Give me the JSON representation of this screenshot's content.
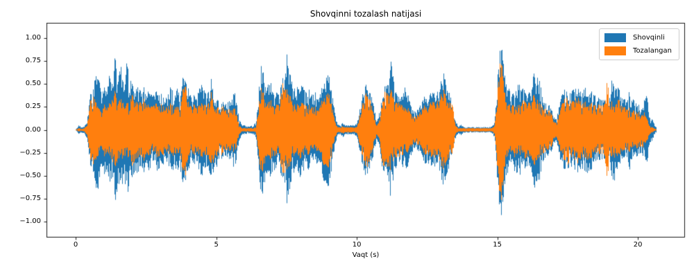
{
  "title": "Shovqinni tozalash natijasi",
  "x_axis": {
    "label": "Vaqt (s)",
    "ticks": [
      "0",
      "5",
      "10",
      "15",
      "20"
    ],
    "tick_values": [
      0,
      5,
      10,
      15,
      20
    ]
  },
  "y_axis": {
    "ticks": [
      "1.00",
      "0.75",
      "0.50",
      "0.25",
      "0.00",
      "−0.25",
      "−0.50",
      "−0.75",
      "−1.00"
    ],
    "tick_values": [
      1.0,
      0.75,
      0.5,
      0.25,
      0.0,
      -0.25,
      -0.5,
      -0.75,
      -1.0
    ]
  },
  "legend": {
    "items": [
      {
        "label": "Shovqinli",
        "color": "#1f77b4"
      },
      {
        "label": "Tozalangan",
        "color": "#ff7f0e"
      }
    ]
  },
  "colors": {
    "noisy": "#1f77b4",
    "clean": "#ff7f0e",
    "axis": "#000000",
    "background": "#ffffff",
    "legend_border": "#cccccc"
  },
  "chart_data": {
    "type": "line",
    "subtype": "audio-waveform",
    "title": "Shovqinni tozalash natijasi",
    "xlabel": "Vaqt (s)",
    "ylabel": "",
    "xlim": [
      -1.04,
      21.65
    ],
    "ylim": [
      -1.17,
      1.17
    ],
    "grid": false,
    "legend_position": "upper right",
    "duration_s": 20.64,
    "sample_step_s": 0.1,
    "series": [
      {
        "name": "Shovqinli",
        "color": "#1f77b4",
        "envelope": [
          0.01,
          0.05,
          0.03,
          0.04,
          0.1,
          0.38,
          0.45,
          0.67,
          0.66,
          0.38,
          0.5,
          0.45,
          0.62,
          0.5,
          0.87,
          0.55,
          0.72,
          0.5,
          0.8,
          0.55,
          0.52,
          0.45,
          0.55,
          0.42,
          0.48,
          0.4,
          0.45,
          0.38,
          0.42,
          0.45,
          0.4,
          0.38,
          0.35,
          0.42,
          0.5,
          0.4,
          0.45,
          0.42,
          0.58,
          0.55,
          0.45,
          0.35,
          0.38,
          0.35,
          0.48,
          0.5,
          0.42,
          0.4,
          0.57,
          0.45,
          0.42,
          0.3,
          0.32,
          0.28,
          0.3,
          0.35,
          0.42,
          0.38,
          0.12,
          0.06,
          0.05,
          0.04,
          0.04,
          0.05,
          0.08,
          0.45,
          0.76,
          0.62,
          0.5,
          0.55,
          0.48,
          0.45,
          0.4,
          0.5,
          0.62,
          0.84,
          0.65,
          0.5,
          0.45,
          0.5,
          0.52,
          0.45,
          0.4,
          0.45,
          0.38,
          0.42,
          0.35,
          0.4,
          0.55,
          0.67,
          0.6,
          0.45,
          0.2,
          0.06,
          0.05,
          0.08,
          0.05,
          0.05,
          0.05,
          0.06,
          0.08,
          0.25,
          0.4,
          0.5,
          0.48,
          0.4,
          0.25,
          0.1,
          0.2,
          0.45,
          0.48,
          0.5,
          0.77,
          0.55,
          0.4,
          0.35,
          0.38,
          0.48,
          0.4,
          0.3,
          0.22,
          0.2,
          0.25,
          0.3,
          0.38,
          0.35,
          0.4,
          0.42,
          0.4,
          0.45,
          0.55,
          0.63,
          0.5,
          0.4,
          0.25,
          0.1,
          0.04,
          0.06,
          0.03,
          0.03,
          0.03,
          0.03,
          0.03,
          0.03,
          0.03,
          0.03,
          0.03,
          0.03,
          0.04,
          0.1,
          0.6,
          1.0,
          0.8,
          0.5,
          0.45,
          0.4,
          0.45,
          0.55,
          0.5,
          0.45,
          0.42,
          0.4,
          0.5,
          0.65,
          0.6,
          0.55,
          0.35,
          0.3,
          0.28,
          0.25,
          0.15,
          0.12,
          0.3,
          0.4,
          0.45,
          0.42,
          0.4,
          0.45,
          0.5,
          0.45,
          0.42,
          0.45,
          0.5,
          0.45,
          0.4,
          0.38,
          0.35,
          0.32,
          0.35,
          0.45,
          0.4,
          0.64,
          0.5,
          0.45,
          0.4,
          0.35,
          0.3,
          0.45,
          0.35,
          0.3,
          0.28,
          0.25,
          0.3,
          0.45,
          0.15,
          0.12,
          0.04
        ]
      },
      {
        "name": "Tozalangan",
        "color": "#ff7f0e",
        "envelope": [
          0.0,
          0.02,
          0.01,
          0.02,
          0.06,
          0.3,
          0.4,
          0.35,
          0.28,
          0.18,
          0.3,
          0.25,
          0.3,
          0.35,
          0.45,
          0.3,
          0.35,
          0.3,
          0.32,
          0.28,
          0.4,
          0.33,
          0.35,
          0.3,
          0.35,
          0.3,
          0.28,
          0.26,
          0.3,
          0.3,
          0.28,
          0.28,
          0.25,
          0.28,
          0.3,
          0.28,
          0.25,
          0.28,
          0.45,
          0.5,
          0.3,
          0.25,
          0.28,
          0.25,
          0.28,
          0.3,
          0.28,
          0.28,
          0.42,
          0.35,
          0.3,
          0.25,
          0.28,
          0.22,
          0.22,
          0.25,
          0.25,
          0.22,
          0.05,
          0.02,
          0.02,
          0.02,
          0.02,
          0.02,
          0.03,
          0.3,
          0.5,
          0.4,
          0.3,
          0.35,
          0.3,
          0.3,
          0.28,
          0.4,
          0.6,
          0.45,
          0.4,
          0.3,
          0.28,
          0.3,
          0.32,
          0.28,
          0.26,
          0.28,
          0.25,
          0.26,
          0.22,
          0.28,
          0.38,
          0.45,
          0.4,
          0.3,
          0.1,
          0.03,
          0.03,
          0.04,
          0.03,
          0.03,
          0.03,
          0.03,
          0.04,
          0.18,
          0.3,
          0.4,
          0.42,
          0.3,
          0.15,
          0.05,
          0.12,
          0.4,
          0.42,
          0.4,
          0.45,
          0.35,
          0.3,
          0.3,
          0.28,
          0.25,
          0.25,
          0.2,
          0.15,
          0.15,
          0.18,
          0.22,
          0.28,
          0.25,
          0.3,
          0.32,
          0.3,
          0.35,
          0.4,
          0.45,
          0.35,
          0.3,
          0.28,
          0.05,
          0.02,
          0.02,
          0.02,
          0.02,
          0.02,
          0.02,
          0.02,
          0.02,
          0.02,
          0.02,
          0.02,
          0.02,
          0.02,
          0.06,
          0.45,
          0.85,
          0.6,
          0.3,
          0.28,
          0.28,
          0.3,
          0.3,
          0.28,
          0.32,
          0.32,
          0.3,
          0.35,
          0.4,
          0.35,
          0.3,
          0.26,
          0.24,
          0.22,
          0.2,
          0.1,
          0.08,
          0.2,
          0.3,
          0.35,
          0.38,
          0.3,
          0.32,
          0.4,
          0.35,
          0.3,
          0.3,
          0.35,
          0.32,
          0.28,
          0.28,
          0.28,
          0.26,
          0.3,
          0.55,
          0.3,
          0.32,
          0.3,
          0.33,
          0.3,
          0.26,
          0.22,
          0.25,
          0.22,
          0.2,
          0.2,
          0.18,
          0.2,
          0.15,
          0.05,
          0.03,
          0.01
        ]
      }
    ]
  }
}
